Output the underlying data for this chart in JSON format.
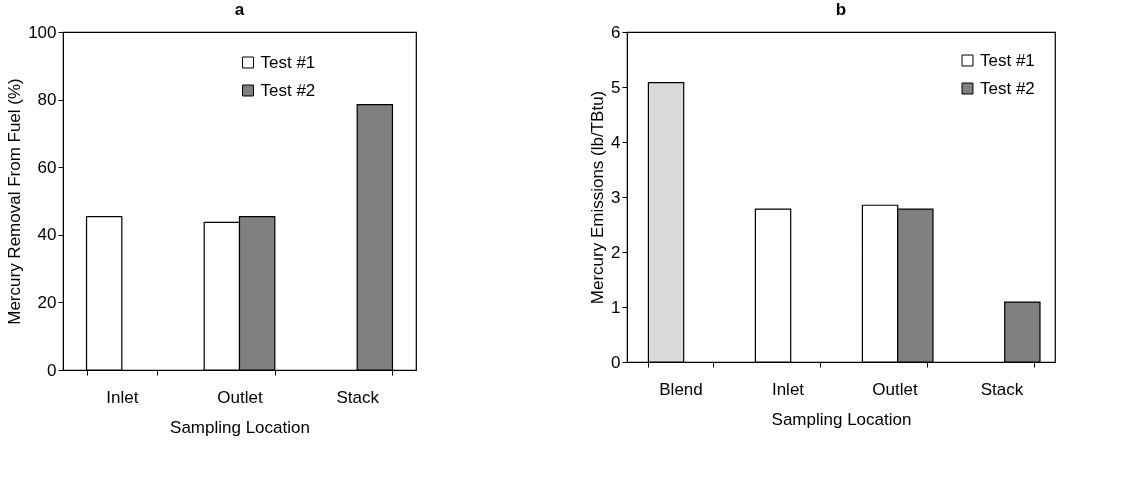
{
  "chart_data": [
    {
      "type": "bar",
      "title": "a",
      "xlabel": "Sampling Location",
      "ylabel": "Mercury Removal From Fuel (%)",
      "categories": [
        "Inlet",
        "Outlet",
        "Stack"
      ],
      "series": [
        {
          "name": "Test #1",
          "color": "#ffffff",
          "values": [
            45.4,
            43.7,
            null
          ]
        },
        {
          "name": "Test #2",
          "color": "#808080",
          "values": [
            null,
            45.4,
            78.5
          ]
        }
      ],
      "ylim": [
        0,
        100
      ],
      "yticks": [
        0,
        20,
        40,
        60,
        80,
        100
      ],
      "grid": false,
      "legend": "top"
    },
    {
      "type": "bar",
      "title": "b",
      "xlabel": "Sampling Location",
      "ylabel": "Mercury Emissions (lb/TBtu)",
      "categories": [
        "Blend",
        "Inlet",
        "Outlet",
        "Stack"
      ],
      "series": [
        {
          "name": "Test #1",
          "color": "#ffffff",
          "values": [
            null,
            2.78,
            2.85,
            null
          ]
        },
        {
          "name": "Test #2",
          "color": "#808080",
          "values": [
            null,
            null,
            2.78,
            1.09
          ]
        },
        {
          "color": "#d9d9d9",
          "values": [
            5.08,
            null,
            null,
            null
          ]
        }
      ],
      "ylim": [
        0,
        6
      ],
      "yticks": [
        0,
        1,
        2,
        3,
        4,
        5,
        6
      ],
      "grid": false,
      "legend": "top right"
    }
  ]
}
